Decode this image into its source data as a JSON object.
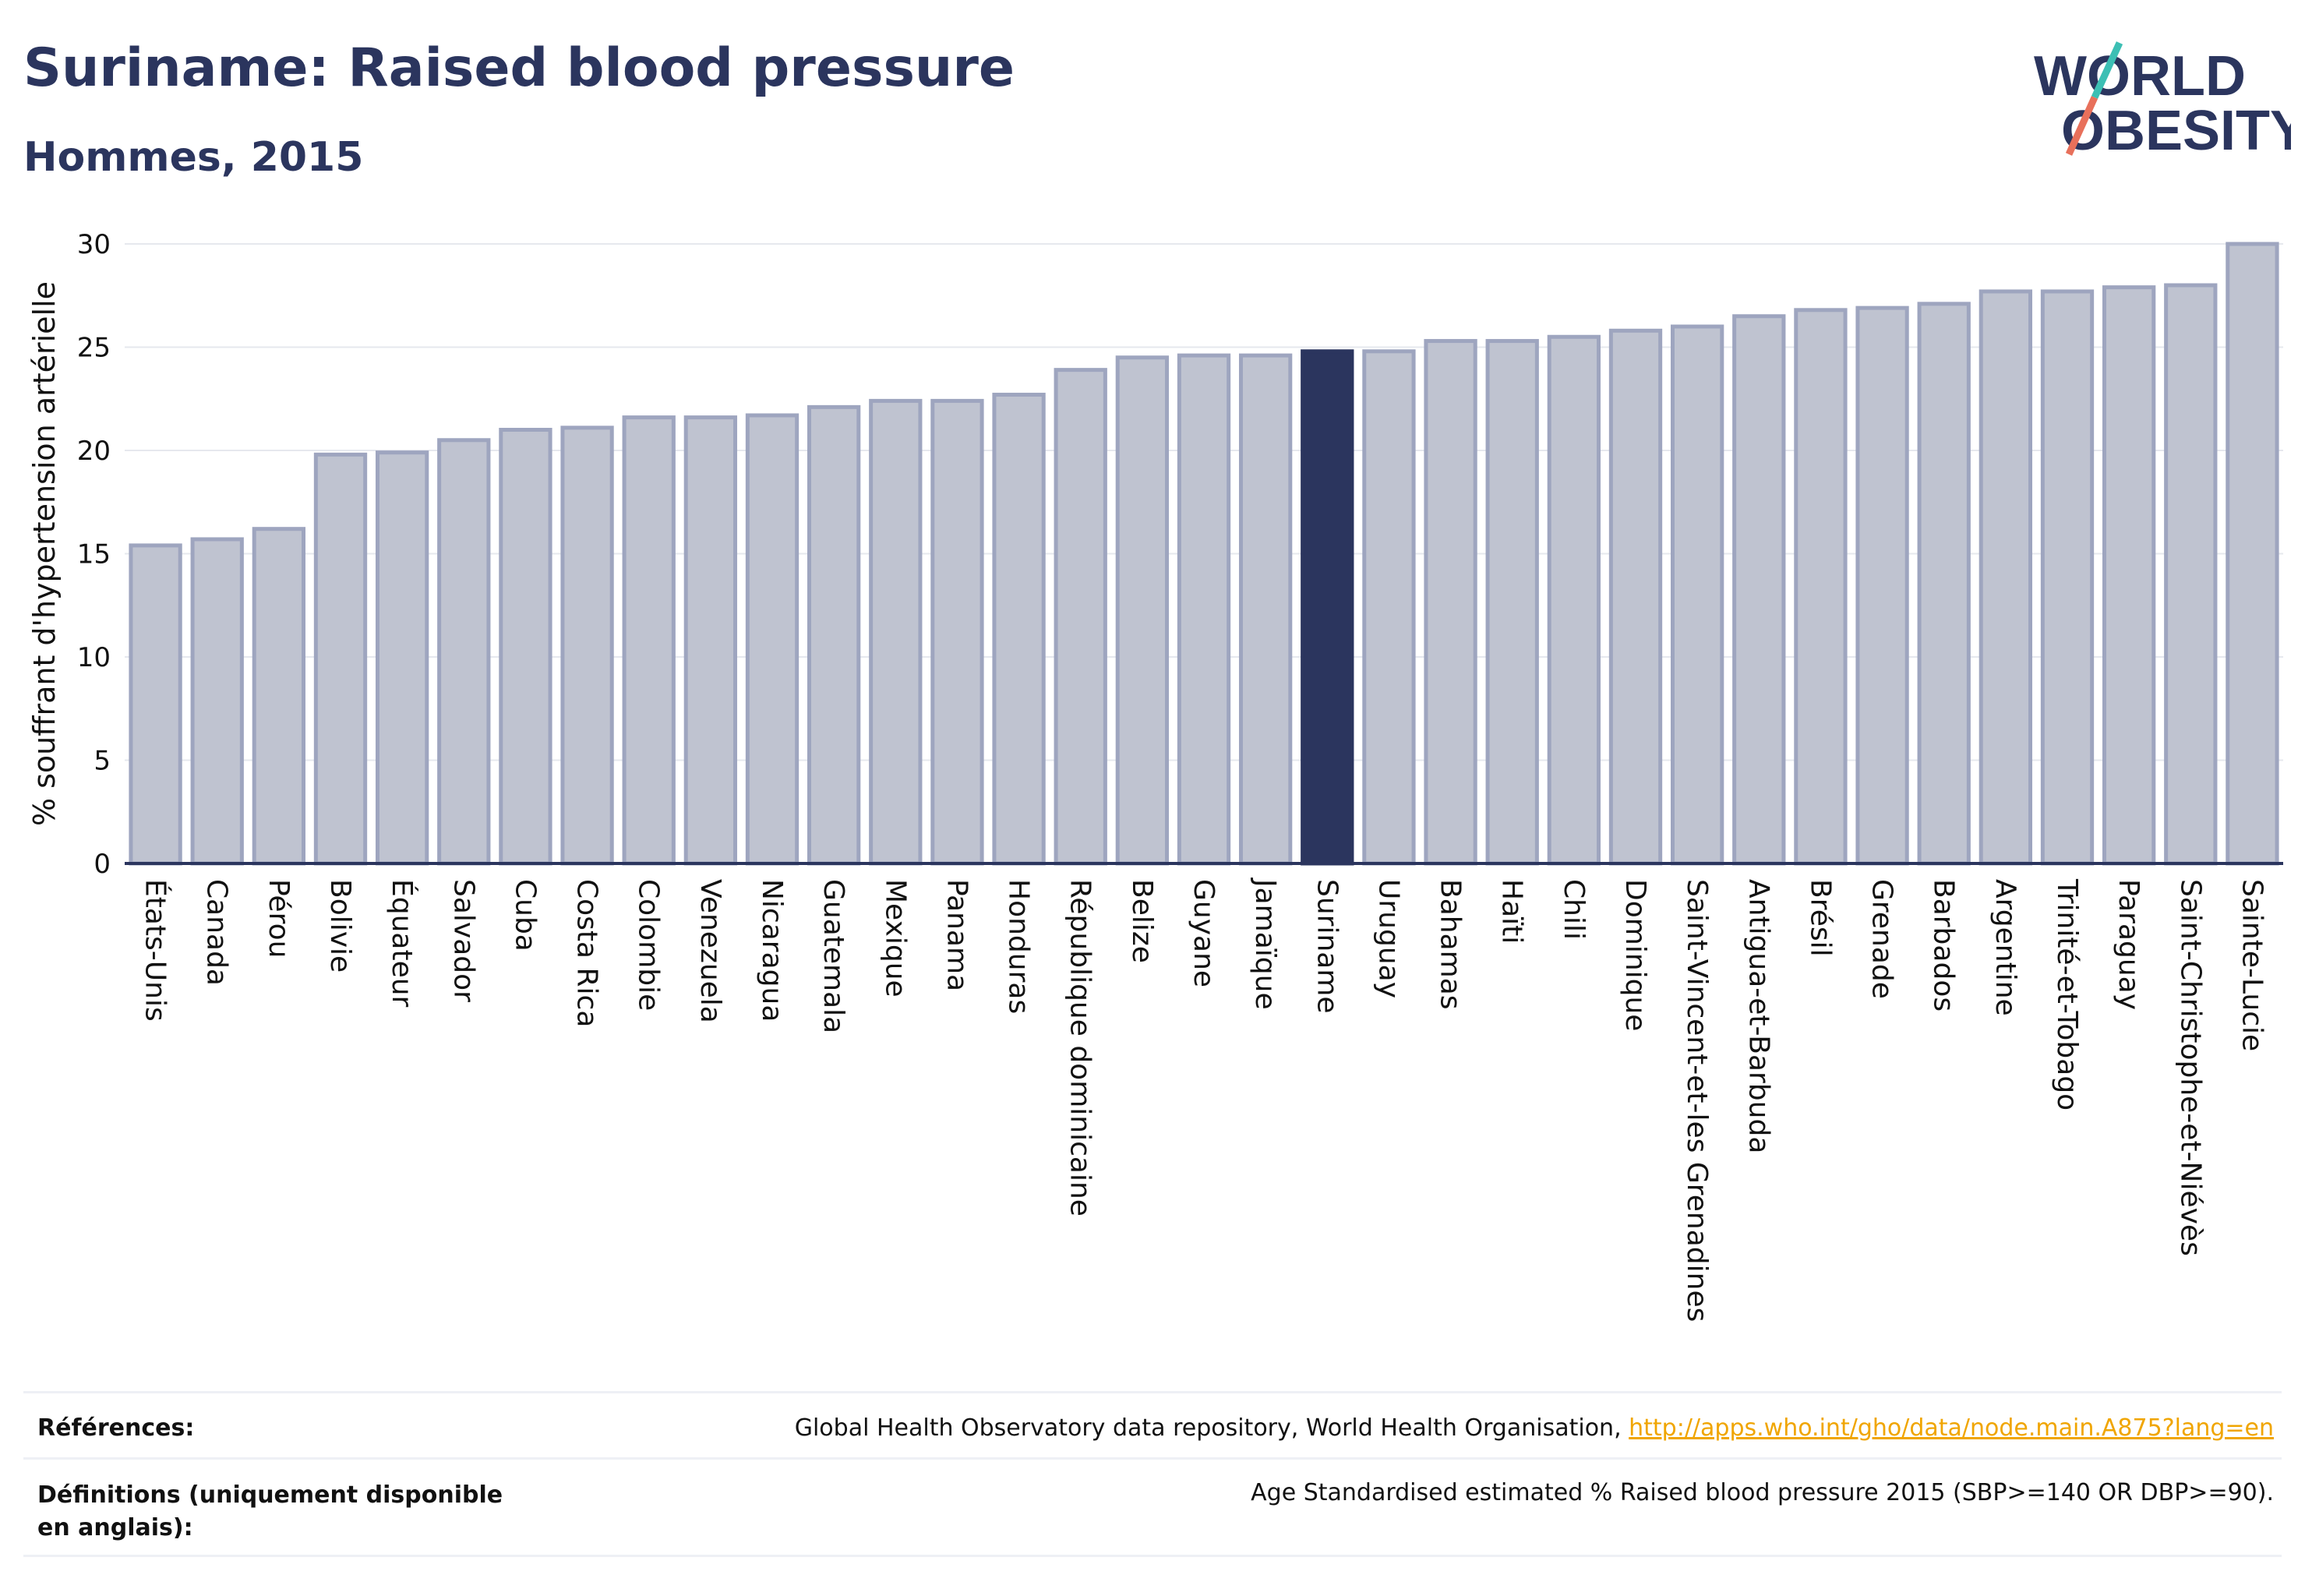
{
  "header": {
    "title": "Suriname: Raised blood pressure",
    "subtitle": "Hommes, 2015"
  },
  "logo": {
    "line1": "WORLD",
    "line2": "OBESITY"
  },
  "colors": {
    "bar": "#bfc3d0",
    "bar_border": "#9ea5bf",
    "highlight": "#2b355e",
    "text": "#2b355e",
    "grid": "#e6e8ee",
    "link": "#f0a500"
  },
  "chart_data": {
    "type": "bar",
    "ylabel": "% souffrant d'hypertension artérielle",
    "ylim": [
      0,
      30
    ],
    "yticks": [
      0,
      5,
      10,
      15,
      20,
      25,
      30
    ],
    "grid": true,
    "highlight": "Suriname",
    "categories": [
      "États-Unis",
      "Canada",
      "Pérou",
      "Bolivie",
      "Équateur",
      "Salvador",
      "Cuba",
      "Costa Rica",
      "Colombie",
      "Venezuela",
      "Nicaragua",
      "Guatemala",
      "Mexique",
      "Panama",
      "Honduras",
      "République dominicaine",
      "Belize",
      "Guyane",
      "Jamaïque",
      "Suriname",
      "Uruguay",
      "Bahamas",
      "Haïti",
      "Chili",
      "Dominique",
      "Saint-Vincent-et-les Grenadines",
      "Antigua-et-Barbuda",
      "Brésil",
      "Grenade",
      "Barbados",
      "Argentine",
      "Trinité-et-Tobago",
      "Paraguay",
      "Saint-Christophe-et-Niévès",
      "Sainte-Lucie"
    ],
    "values": [
      15.4,
      15.7,
      16.2,
      19.8,
      19.9,
      20.5,
      21.0,
      21.1,
      21.6,
      21.6,
      21.7,
      22.1,
      22.4,
      22.4,
      22.7,
      23.9,
      24.5,
      24.6,
      24.6,
      24.8,
      24.8,
      25.3,
      25.3,
      25.5,
      25.8,
      26.0,
      26.5,
      26.8,
      26.9,
      27.1,
      27.7,
      27.7,
      27.9,
      28.0,
      30.0
    ]
  },
  "footer": {
    "references_label": "Références:",
    "references_text": "Global Health Observatory data repository, World Health Organisation, ",
    "references_link": "http://apps.who.int/gho/data/node.main.A875?lang=en",
    "definitions_label": "Définitions (uniquement disponible en anglais):",
    "definitions_text": "Age Standardised estimated % Raised blood pressure 2015 (SBP>=140 OR DBP>=90)."
  }
}
